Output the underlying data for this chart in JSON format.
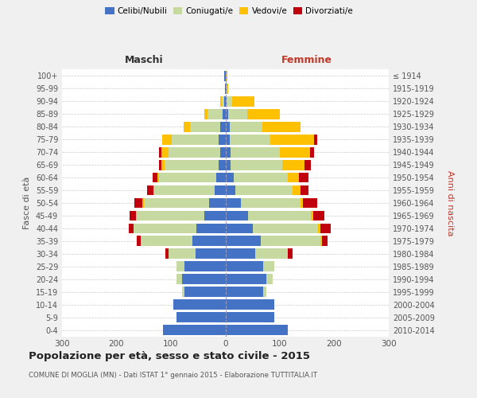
{
  "age_groups_bottom_to_top": [
    "0-4",
    "5-9",
    "10-14",
    "15-19",
    "20-24",
    "25-29",
    "30-34",
    "35-39",
    "40-44",
    "45-49",
    "50-54",
    "55-59",
    "60-64",
    "65-69",
    "70-74",
    "75-79",
    "80-84",
    "85-89",
    "90-94",
    "95-99",
    "100+"
  ],
  "birth_years_bottom_to_top": [
    "2010-2014",
    "2005-2009",
    "2000-2004",
    "1995-1999",
    "1990-1994",
    "1985-1989",
    "1980-1984",
    "1975-1979",
    "1970-1974",
    "1965-1969",
    "1960-1964",
    "1955-1959",
    "1950-1954",
    "1945-1949",
    "1940-1944",
    "1935-1939",
    "1930-1934",
    "1925-1929",
    "1920-1924",
    "1915-1919",
    "≤ 1914"
  ],
  "maschi": {
    "celibi": [
      115,
      90,
      95,
      75,
      80,
      75,
      55,
      60,
      53,
      38,
      30,
      20,
      17,
      12,
      10,
      13,
      10,
      5,
      2,
      1,
      2
    ],
    "coniugati": [
      0,
      0,
      0,
      5,
      10,
      15,
      50,
      95,
      115,
      125,
      120,
      110,
      105,
      100,
      95,
      85,
      55,
      28,
      5,
      0,
      0
    ],
    "vedovi": [
      0,
      0,
      0,
      0,
      0,
      0,
      0,
      0,
      0,
      1,
      2,
      2,
      3,
      5,
      12,
      18,
      12,
      5,
      2,
      0,
      0
    ],
    "divorziati": [
      0,
      0,
      0,
      0,
      0,
      0,
      5,
      8,
      10,
      12,
      15,
      12,
      8,
      5,
      5,
      0,
      0,
      0,
      0,
      0,
      0
    ]
  },
  "femmine": {
    "nubili": [
      115,
      90,
      90,
      70,
      75,
      70,
      55,
      65,
      50,
      42,
      28,
      18,
      15,
      10,
      10,
      8,
      8,
      5,
      2,
      2,
      1
    ],
    "coniugate": [
      0,
      0,
      0,
      5,
      12,
      20,
      60,
      110,
      120,
      115,
      110,
      105,
      100,
      95,
      90,
      75,
      60,
      35,
      10,
      0,
      0
    ],
    "vedove": [
      0,
      0,
      0,
      0,
      0,
      0,
      0,
      2,
      5,
      5,
      5,
      15,
      20,
      40,
      55,
      80,
      70,
      60,
      42,
      3,
      2
    ],
    "divorziate": [
      0,
      0,
      0,
      0,
      0,
      0,
      8,
      10,
      18,
      20,
      25,
      15,
      18,
      12,
      8,
      5,
      0,
      0,
      0,
      0,
      0
    ]
  },
  "colors": {
    "celibi": "#4472c4",
    "coniugati": "#c5d9a0",
    "vedovi": "#ffc000",
    "divorziati": "#c0000c"
  },
  "xlim": 300,
  "title": "Popolazione per età, sesso e stato civile - 2015",
  "subtitle": "COMUNE DI MOGLIA (MN) - Dati ISTAT 1° gennaio 2015 - Elaborazione TUTTITALIA.IT",
  "xlabel_left": "Maschi",
  "xlabel_right": "Femmine",
  "ylabel_left": "Fasce di età",
  "ylabel_right": "Anni di nascita",
  "bg_color": "#f0f0f0",
  "plot_bg": "#ffffff",
  "legend_labels": [
    "Celibi/Nubili",
    "Coniugati/e",
    "Vedovi/e",
    "Divorziati/e"
  ]
}
